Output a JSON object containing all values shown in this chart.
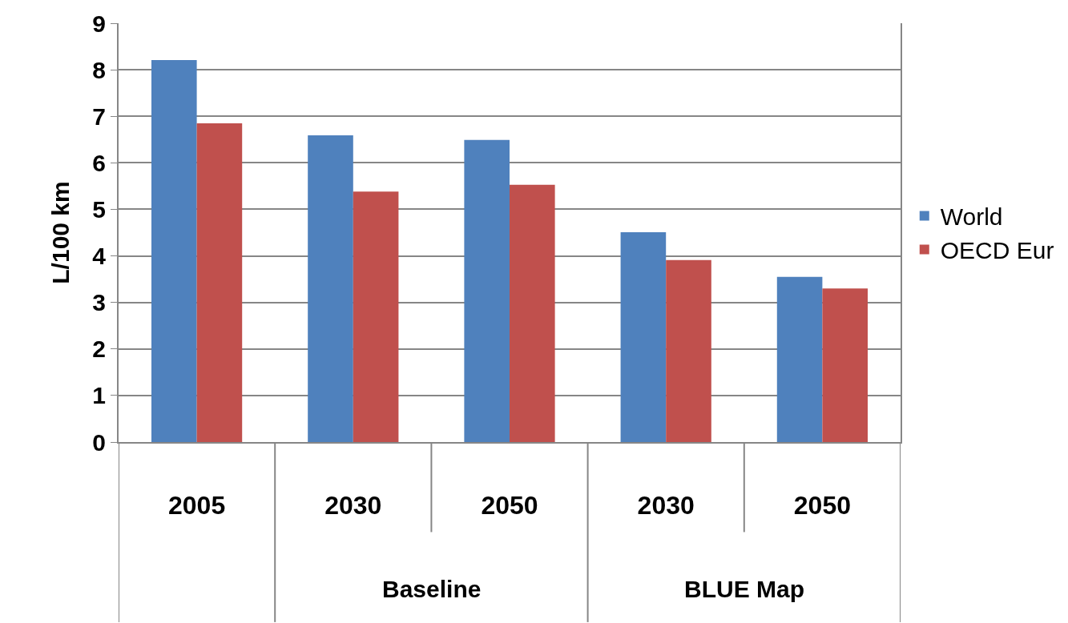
{
  "chart_data": {
    "type": "bar",
    "ylabel": "L/100 km",
    "categories": [
      "2005",
      "2030",
      "2050",
      "2030",
      "2050"
    ],
    "annotations": [
      "Baseline",
      "BLUE Map"
    ],
    "series": [
      {
        "name": "World",
        "color": "#4f81bd",
        "values": [
          8.21,
          6.59,
          6.49,
          4.51,
          3.55
        ]
      },
      {
        "name": "OECD Eur",
        "color": "#c0504d",
        "values": [
          6.85,
          5.38,
          5.53,
          3.91,
          3.3
        ]
      }
    ],
    "ylim": [
      0,
      9
    ],
    "yticks": [
      0,
      1,
      2,
      3,
      4,
      5,
      6,
      7,
      8,
      9
    ],
    "grid": "y",
    "legend": "right"
  }
}
